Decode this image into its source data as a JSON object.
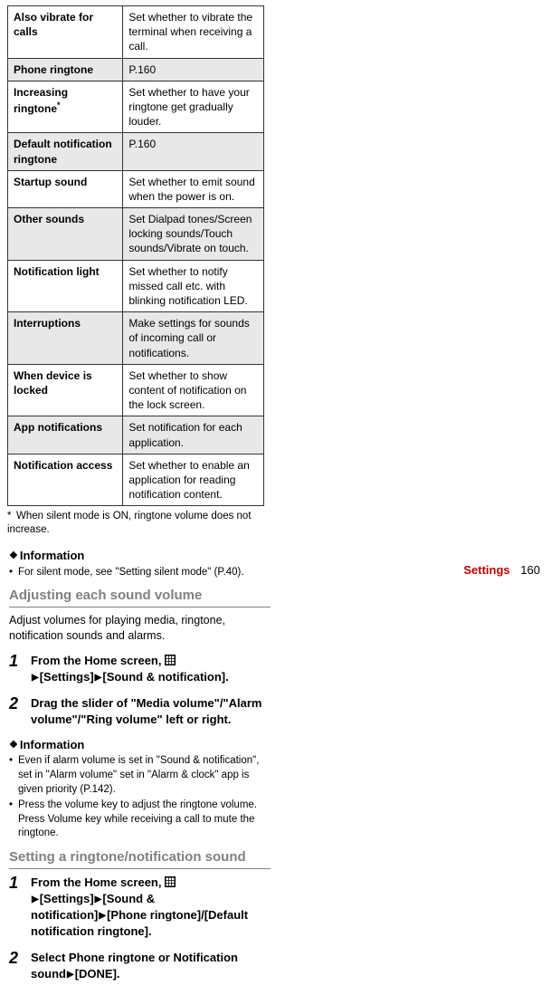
{
  "table": {
    "rows": [
      {
        "label": "Also vibrate for calls",
        "desc": "Set whether to vibrate the terminal when receiving a call.",
        "shaded": false
      },
      {
        "label": "Phone ringtone",
        "desc": "P.160",
        "shaded": true
      },
      {
        "label": "Increasing ringtone",
        "sup": "*",
        "desc": "Set whether to have your ringtone get gradually louder.",
        "shaded": false
      },
      {
        "label": "Default notification ringtone",
        "desc": "P.160",
        "shaded": true
      },
      {
        "label": "Startup sound",
        "desc": "Set whether to emit sound when the power is on.",
        "shaded": false
      },
      {
        "label": "Other sounds",
        "desc": "Set Dialpad tones/Screen locking sounds/Touch sounds/Vibrate on touch.",
        "shaded": true
      },
      {
        "label": "Notification light",
        "desc": "Set whether to notify missed call etc. with blinking notification LED.",
        "shaded": false
      },
      {
        "label": "Interruptions",
        "desc": "Make settings for sounds of incoming call or notifications.",
        "shaded": true
      },
      {
        "label": "When device is locked",
        "desc": "Set whether to show content of notification on the lock screen.",
        "shaded": false
      },
      {
        "label": "App notifications",
        "desc": "Set notification for each application.",
        "shaded": true
      },
      {
        "label": "Notification access",
        "desc": "Set whether to enable an application for reading notification content.",
        "shaded": false
      }
    ]
  },
  "footnote": "When silent mode is ON, ringtone volume does not increase.",
  "right": {
    "info1_head": "Information",
    "info1_items": [
      "For silent mode, see \"Setting silent mode\" (P.40)."
    ],
    "section1": "Adjusting each sound volume",
    "section1_body": "Adjust volumes for playing media, ringtone, notification sounds and alarms.",
    "steps1": [
      {
        "n": "1",
        "pre": "From the Home screen, ",
        "mid": "[Settings]",
        "mid2": "[Sound & notification]."
      },
      {
        "n": "2",
        "text": "Drag the slider of \"Media volume\"/\"Alarm volume\"/\"Ring volume\" left or right."
      }
    ],
    "info2_head": "Information",
    "info2_items": [
      "Even if alarm volume is set in \"Sound & notification\", set in \"Alarm volume\" set in \"Alarm & clock\" app is given priority (P.142).",
      "Press the volume key to adjust the ringtone volume. Press Volume key while receiving a call to mute the ringtone."
    ],
    "section2": "Setting a ringtone/notification sound",
    "steps2": [
      {
        "n": "1",
        "pre": "From the Home screen, ",
        "mid": "[Settings]",
        "mid2": "[Sound & notification]",
        "mid3": "[Phone ringtone]/[Default notification ringtone]."
      },
      {
        "n": "2",
        "text": "Select Phone ringtone or Notification sound",
        "tail": "[DONE]."
      }
    ]
  },
  "footer": {
    "section": "Settings",
    "page": "160"
  }
}
